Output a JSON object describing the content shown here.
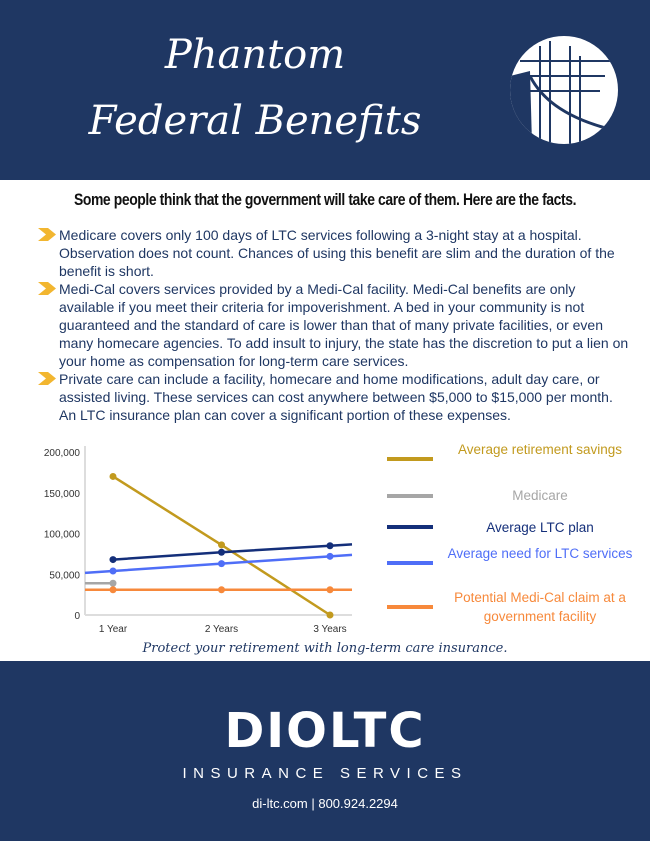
{
  "header": {
    "title_line1": "Phantom",
    "title_line2": "Federal Benefits"
  },
  "subtitle": "Some people think that the government will take care of them. Here are the facts.",
  "bullets": [
    "Medicare covers only 100 days of LTC services following a 3-night stay at a hospital. Observation does not count. Chances of using this benefit are slim and the duration of the benefit is short.",
    "Medi-Cal covers services provided by a Medi-Cal facility. Medi-Cal benefits are only available if you meet their criteria for impoverishment. A bed in your community is not guaranteed and the standard of care is lower than that of many private facilities, or even many homecare agencies. To add insult to injury, the state has the discretion to put a lien on your home as compensation for long-term care services.",
    "Private care can include a facility, homecare and home modifications, adult day care, or assisted living. These services can cost anywhere between $5,000 to $15,000 per month. An LTC insurance plan can cover a significant portion of these expenses."
  ],
  "colors": {
    "navy": "#1f3763",
    "bullet": "#f2b630"
  },
  "chart_data": {
    "type": "line",
    "categories": [
      "1 Year",
      "2 Years",
      "3 Years"
    ],
    "yticks": [
      "0",
      "50,000",
      "100,000",
      "150,000",
      "200,000"
    ],
    "ylim": [
      0,
      200000
    ],
    "series": [
      {
        "name": "Average retirement savings",
        "color": "#c29a1e",
        "values": [
          170000,
          86000,
          0
        ]
      },
      {
        "name": "Medicare",
        "color": "#a6a6a6",
        "values": [
          39000,
          null,
          null
        ]
      },
      {
        "name": "Average LTC plan",
        "color": "#142f7a",
        "values": [
          68000,
          77000,
          85000
        ]
      },
      {
        "name": "Average need for LTC services",
        "color": "#4f6ef7",
        "values": [
          54000,
          63000,
          72000
        ]
      },
      {
        "name": "Potential Medi-Cal claim at a government facility",
        "color": "#f7893b",
        "values": [
          31000,
          31000,
          31000
        ]
      }
    ],
    "legend": [
      "Average retirement savings",
      "Medicare",
      "Average LTC plan",
      "Average need for LTC services",
      "Potential Medi-Cal claim at a government facility"
    ]
  },
  "tagline": "Protect your retirement with long-term care insurance.",
  "footer": {
    "brand": "DIOLTC",
    "services": "INSURANCE SERVICES",
    "contact": "di-ltc.com | 800.924.2294"
  }
}
